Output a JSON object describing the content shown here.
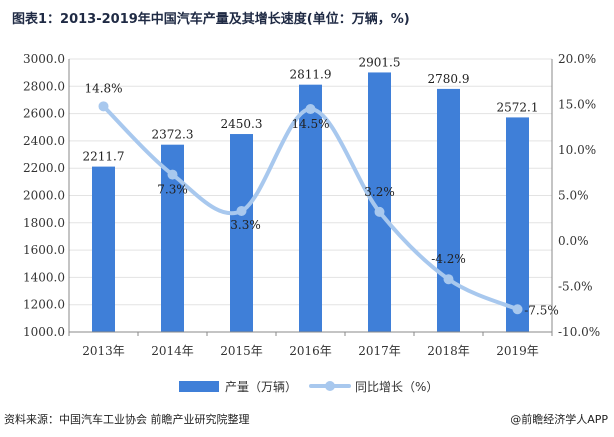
{
  "header": {
    "title": "图表1：2013-2019年中国汽车产量及其增长速度(单位：万辆，%)"
  },
  "footer": {
    "source": "资料来源：中国汽车工业协会 前瞻产业研究院整理",
    "brand": "@前瞻经济学人APP"
  },
  "colors": {
    "bar": "#3f7fd8",
    "line": "#a8c8ee",
    "grid": "#e3e3e3"
  },
  "chart_data": {
    "type": "bar",
    "title": "图表1：2013-2019年中国汽车产量及其增长速度(单位：万辆，%)",
    "categories": [
      "2013年",
      "2014年",
      "2015年",
      "2016年",
      "2017年",
      "2018年",
      "2019年"
    ],
    "series": [
      {
        "name": "产量（万辆）",
        "type": "bar",
        "axis": "left",
        "values": [
          2211.7,
          2372.3,
          2450.3,
          2811.9,
          2901.5,
          2780.9,
          2572.1
        ],
        "labels": [
          "2211.7",
          "2372.3",
          "2450.3",
          "2811.9",
          "2901.5",
          "2780.9",
          "2572.1"
        ]
      },
      {
        "name": "同比增长（%）",
        "type": "line",
        "axis": "right",
        "smooth": true,
        "values": [
          14.8,
          7.3,
          3.3,
          14.5,
          3.2,
          -4.2,
          -7.5
        ],
        "labels": [
          "14.8%",
          "7.3%",
          "3.3%",
          "14.5%",
          "3.2%",
          "-4.2%",
          "-7.5%"
        ]
      }
    ],
    "y_left": {
      "min": 1000,
      "max": 3000,
      "step": 200,
      "ticks": [
        "1000.0",
        "1200.0",
        "1400.0",
        "1600.0",
        "1800.0",
        "2000.0",
        "2200.0",
        "2400.0",
        "2600.0",
        "2800.0",
        "3000.0"
      ]
    },
    "y_right": {
      "min": -10,
      "max": 20,
      "step": 5,
      "ticks": [
        "-10.0%",
        "-5.0%",
        "0.0%",
        "5.0%",
        "10.0%",
        "15.0%",
        "20.0%"
      ]
    },
    "legend": {
      "position": "bottom",
      "items": [
        "产量（万辆）",
        "同比增长（%）"
      ]
    }
  }
}
